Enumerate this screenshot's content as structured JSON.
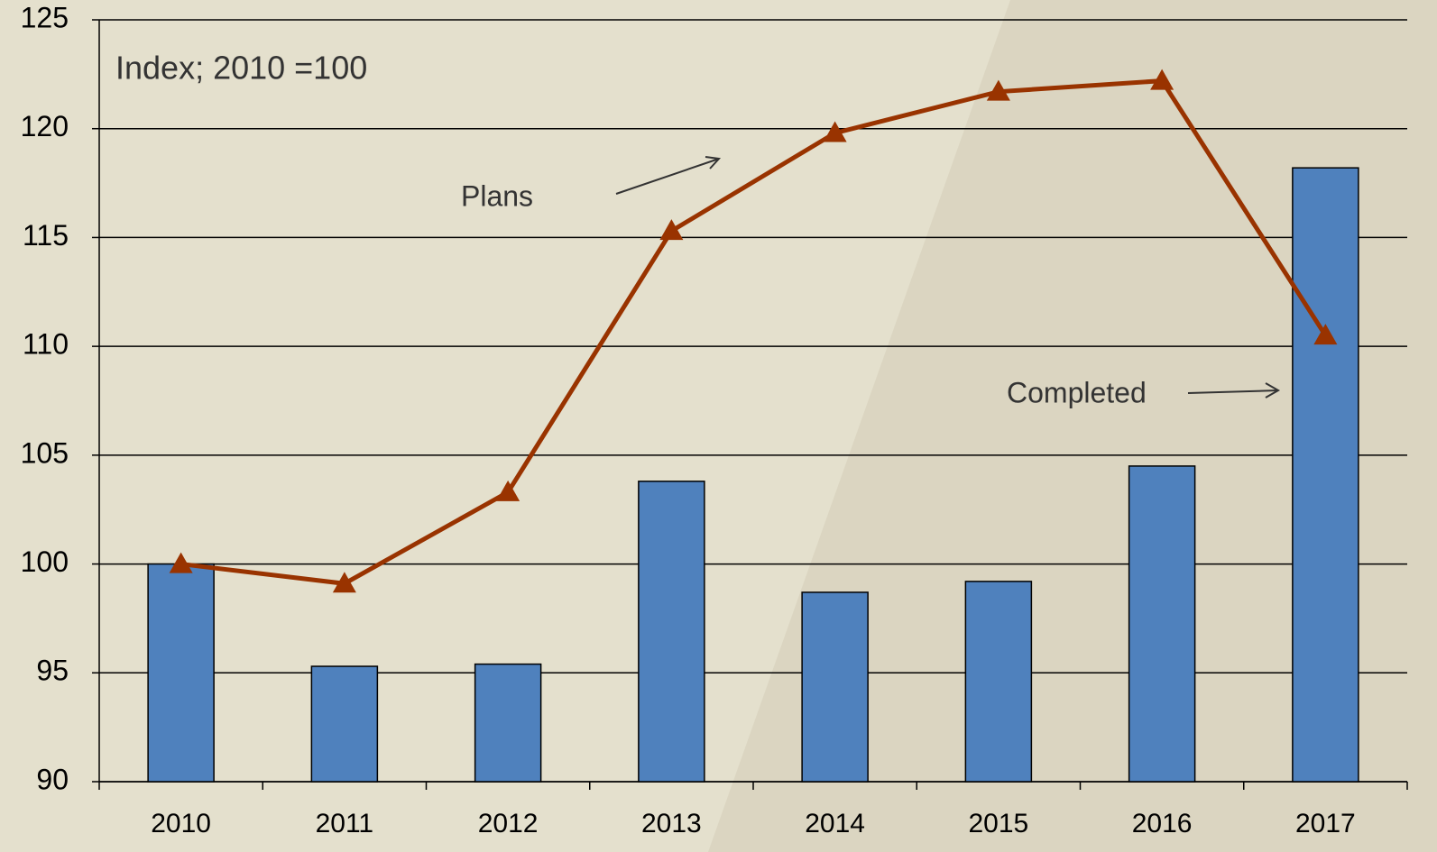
{
  "chart_data": {
    "type": "bar",
    "annotations": [
      "Index; 2010 =100"
    ],
    "categories": [
      "2010",
      "2011",
      "2012",
      "2013",
      "2014",
      "2015",
      "2016",
      "2017"
    ],
    "series": [
      {
        "name": "Completed",
        "type": "bar",
        "color": "#4f81bd",
        "values": [
          100,
          95.3,
          95.4,
          103.8,
          98.7,
          99.2,
          104.5,
          118.2
        ]
      },
      {
        "name": "Plans",
        "type": "line",
        "color": "#993300",
        "values": [
          100,
          99.1,
          103.3,
          115.3,
          119.8,
          121.7,
          122.2,
          110.5
        ]
      }
    ],
    "ylim": [
      90,
      125
    ],
    "yticks": [
      90,
      95,
      100,
      105,
      110,
      115,
      120,
      125
    ],
    "grid": true
  }
}
